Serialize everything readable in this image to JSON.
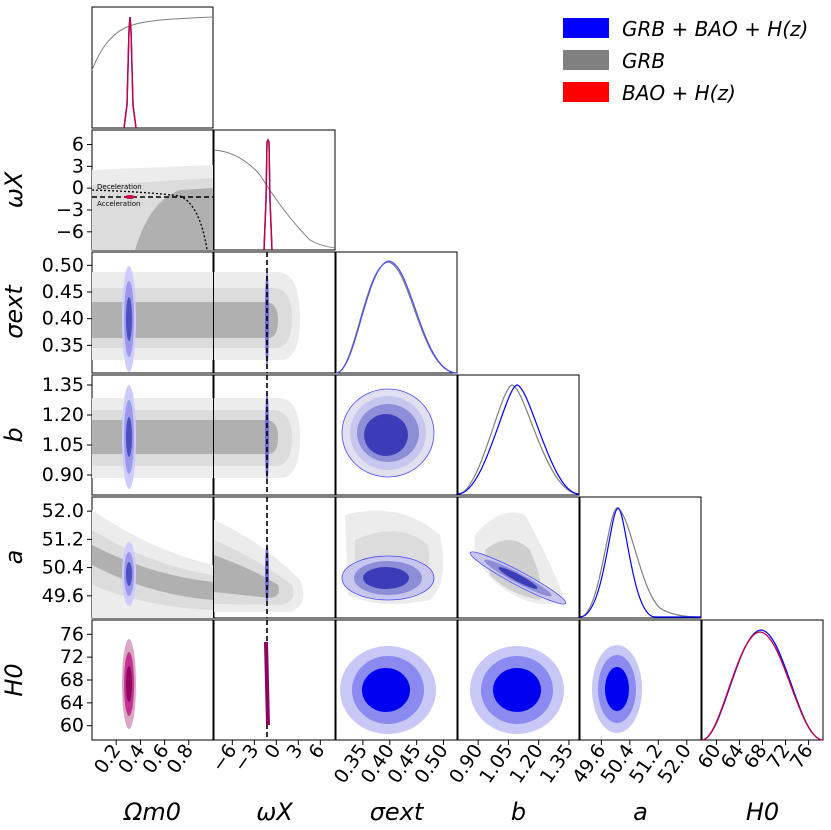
{
  "chart_data": {
    "type": "corner",
    "title": "",
    "parameters": [
      {
        "key": "Om",
        "label": "Ωm0",
        "range": [
          0.0,
          1.0
        ],
        "ticks": [
          0.2,
          0.4,
          0.6,
          0.8
        ],
        "tick_labels": [
          "0.2",
          "0.4",
          "0.6",
          "0.8"
        ]
      },
      {
        "key": "wX",
        "label": "ωX",
        "range": [
          -8.5,
          8.0
        ],
        "ticks": [
          -6,
          -3,
          0,
          3,
          6
        ],
        "tick_labels": [
          "−6",
          "−3",
          "0",
          "3",
          "6"
        ]
      },
      {
        "key": "sig",
        "label": "σext",
        "range": [
          0.3,
          0.525
        ],
        "ticks": [
          0.35,
          0.4,
          0.45,
          0.5
        ],
        "tick_labels": [
          "0.35",
          "0.40",
          "0.45",
          "0.50"
        ]
      },
      {
        "key": "b",
        "label": "b",
        "range": [
          0.8,
          1.4
        ],
        "ticks": [
          0.9,
          1.05,
          1.2,
          1.35
        ],
        "tick_labels": [
          "0.90",
          "1.05",
          "1.20",
          "1.35"
        ]
      },
      {
        "key": "a",
        "label": "a",
        "range": [
          49.0,
          52.4
        ],
        "ticks": [
          49.6,
          50.4,
          51.2,
          52.0
        ],
        "tick_labels": [
          "49.6",
          "50.4",
          "51.2",
          "52.0"
        ]
      },
      {
        "key": "H0",
        "label": "H0",
        "range": [
          57.5,
          78.5
        ],
        "ticks": [
          60,
          64,
          68,
          72,
          76
        ],
        "tick_labels": [
          "60",
          "64",
          "68",
          "72",
          "76"
        ]
      }
    ],
    "series": [
      {
        "name": "GRB + BAO + H(z)",
        "legend": "GRB + BAO + H(z)",
        "color": "#0000ff",
        "means": {
          "Om": 0.3,
          "wX": -1.0,
          "sig": 0.4,
          "b": 1.11,
          "a": 50.3,
          "H0": 66.0
        },
        "sigmas": {
          "Om": 0.02,
          "wX": 0.08,
          "sig": 0.025,
          "b": 0.05,
          "a": 0.12,
          "H0": 2.4
        }
      },
      {
        "name": "GRB",
        "legend": "GRB",
        "color": "#808080",
        "means": {
          "Om": 0.3,
          "wX": -5.0,
          "sig": 0.4,
          "b": 1.1,
          "a": 50.3
        },
        "sigmas": {
          "sig": 0.025,
          "b": 0.05,
          "a": 0.15
        }
      },
      {
        "name": "BAO + H(z)",
        "legend": "BAO + H(z)",
        "color": "#ff0000",
        "means": {
          "Om": 0.3,
          "wX": -1.0,
          "H0": 66.0
        },
        "sigmas": {
          "Om": 0.018,
          "wX": 0.08,
          "H0": 2.6
        }
      }
    ],
    "reference_lines": [
      {
        "parameter": "wX",
        "value": -1.0,
        "style": "dashed"
      }
    ],
    "annotations": [
      "Deceleration",
      "Acceleration"
    ],
    "legend_position": "top-right",
    "grid": false
  }
}
